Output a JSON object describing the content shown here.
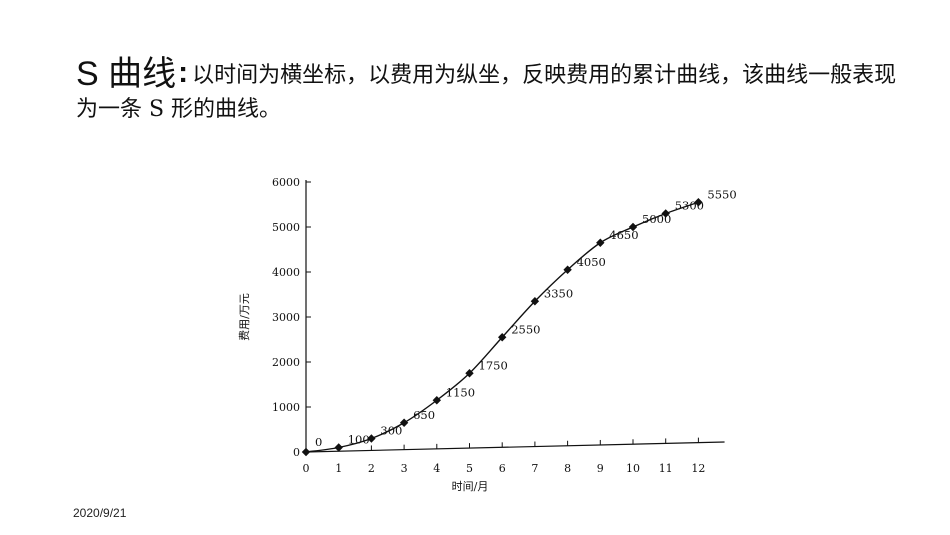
{
  "heading": {
    "term": "S 曲线",
    "colon": ":",
    "description": "以时间为横坐标，以费用为纵坐，反映费用的累计曲线，该曲线一般表现为一条 S 形的曲线。"
  },
  "footer": {
    "date": "2020/9/21"
  },
  "chart_data": {
    "type": "line",
    "title": "",
    "xlabel": "时间/月",
    "ylabel": "费用/万元",
    "x": [
      0,
      1,
      2,
      3,
      4,
      5,
      6,
      7,
      8,
      9,
      10,
      11,
      12
    ],
    "values": [
      0,
      100,
      300,
      650,
      1150,
      1750,
      2550,
      3350,
      4050,
      4650,
      5000,
      5300,
      5550
    ],
    "data_labels": [
      "0",
      "100",
      "300",
      "650",
      "1150",
      "1750",
      "2550",
      "3350",
      "4050",
      "4650",
      "5000",
      "5300",
      "5550"
    ],
    "xticks": [
      "0",
      "1",
      "2",
      "3",
      "4",
      "5",
      "6",
      "7",
      "8",
      "9",
      "10",
      "11",
      "12"
    ],
    "yticks": [
      "0",
      "1000",
      "2000",
      "3000",
      "4000",
      "5000",
      "6000"
    ],
    "xlim": [
      0,
      12.8
    ],
    "ylim": [
      0,
      6000
    ],
    "marker": "diamond",
    "grid": false,
    "legend": "none",
    "color": "#111111"
  }
}
